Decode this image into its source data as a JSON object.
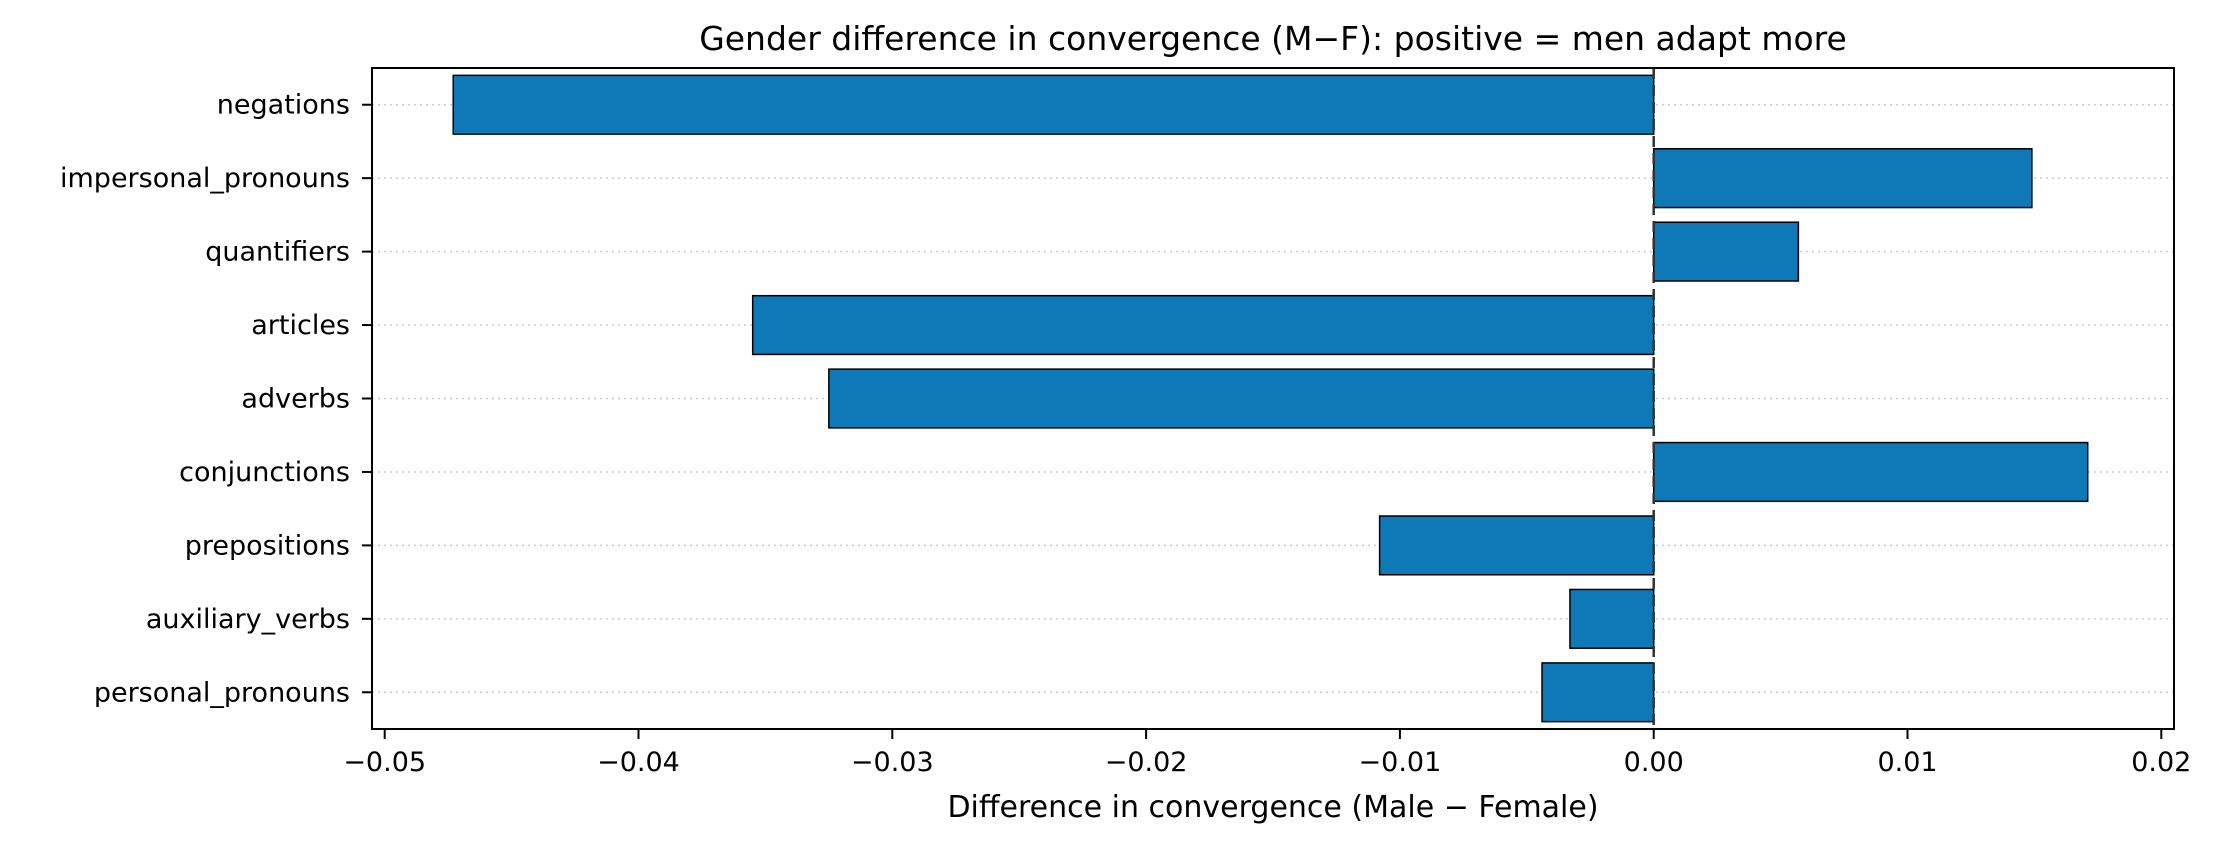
{
  "chart_data": {
    "type": "bar",
    "orientation": "horizontal",
    "title": "Gender difference in convergence (M−F): positive = men adapt more",
    "xlabel": "Difference in convergence (Male − Female)",
    "ylabel": "",
    "xlim": [
      -0.0505,
      0.0205
    ],
    "xticks": [
      -0.05,
      -0.04,
      -0.03,
      -0.02,
      -0.01,
      0.0,
      0.01,
      0.02
    ],
    "xtick_labels": [
      "−0.05",
      "−0.04",
      "−0.03",
      "−0.02",
      "−0.01",
      "0.00",
      "0.01",
      "0.02"
    ],
    "categories": [
      "negations",
      "impersonal_pronouns",
      "quantifiers",
      "articles",
      "adverbs",
      "conjunctions",
      "prepositions",
      "auxiliary_verbs",
      "personal_pronouns"
    ],
    "values": [
      -0.0473,
      0.0149,
      0.0057,
      -0.0355,
      -0.0325,
      0.0171,
      -0.0108,
      -0.0033,
      -0.0044
    ],
    "bar_color": "#0f78b7",
    "edge_color": "#000000",
    "reference_line": 0.0,
    "grid": "horizontal dotted",
    "legend": "none"
  }
}
